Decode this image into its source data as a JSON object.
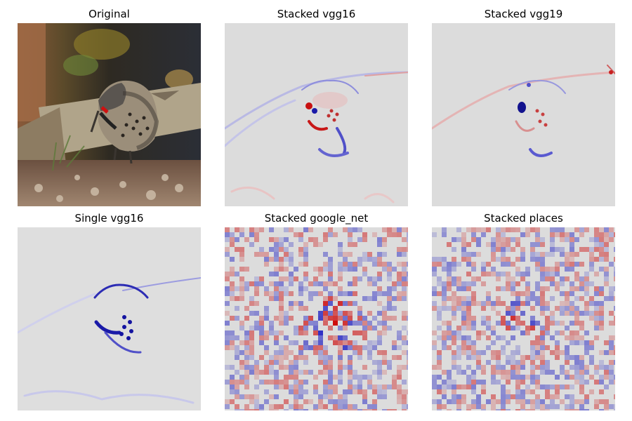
{
  "panels": [
    {
      "id": "original",
      "title": "Original"
    },
    {
      "id": "stacked-vgg16",
      "title": "Stacked vgg16"
    },
    {
      "id": "stacked-vgg19",
      "title": "Stacked vgg19"
    },
    {
      "id": "single-vgg16",
      "title": "Single vgg16"
    },
    {
      "id": "stacked-google-net",
      "title": "Stacked google_net"
    },
    {
      "id": "stacked-places",
      "title": "Stacked places"
    }
  ],
  "colors": {
    "saliency_background": "#dcdcdc",
    "positive": "#cc0000",
    "negative": "#1010c0"
  }
}
